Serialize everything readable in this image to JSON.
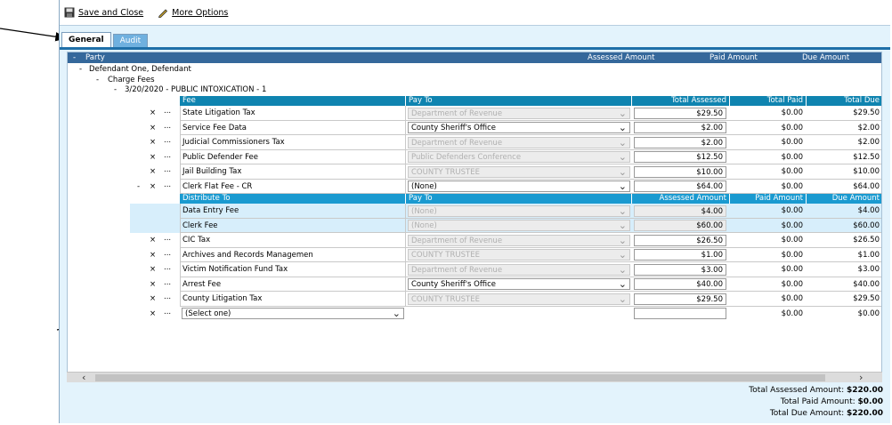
{
  "toolbar": {
    "save_close": "Save and Close",
    "more_options": "More Options"
  },
  "tabs": [
    {
      "label": "General"
    },
    {
      "label": "Audit"
    }
  ],
  "party_header": {
    "party": "Party",
    "assessed": "Assessed Amount",
    "paid": "Paid Amount",
    "due": "Due Amount",
    "collapse": "-"
  },
  "tree": {
    "defendant": "Defendant One, Defendant",
    "charge_fees": "Charge Fees",
    "charge": "3/20/2020 - PUBLIC INTOXICATION - 1",
    "minus": "-"
  },
  "grid_headers": {
    "fee": "Fee",
    "pay_to": "Pay To",
    "total_assessed": "Total Assessed",
    "total_paid": "Total Paid",
    "total_due": "Total Due"
  },
  "sub_headers": {
    "distribute_to": "Distribute To",
    "pay_to": "Pay To",
    "assessed": "Assessed Amount",
    "paid": "Paid Amount",
    "due": "Due Amount"
  },
  "row_controls": {
    "remove": "×",
    "more": "..."
  },
  "fees": [
    {
      "fee": "State Litigation Tax",
      "pay_to": "Department of Revenue",
      "enabled": false,
      "assessed": "$29.50",
      "paid": "$0.00",
      "due": "$29.50"
    },
    {
      "fee": "Service Fee Data",
      "pay_to": "County Sheriff's Office",
      "enabled": true,
      "assessed": "$2.00",
      "paid": "$0.00",
      "due": "$2.00"
    },
    {
      "fee": "Judicial Commissioners Tax",
      "pay_to": "Department of Revenue",
      "enabled": false,
      "assessed": "$2.00",
      "paid": "$0.00",
      "due": "$2.00"
    },
    {
      "fee": "Public Defender Fee",
      "pay_to": "Public Defenders Conference",
      "enabled": false,
      "assessed": "$12.50",
      "paid": "$0.00",
      "due": "$12.50"
    },
    {
      "fee": "Jail Building Tax",
      "pay_to": "COUNTY TRUSTEE",
      "enabled": false,
      "assessed": "$10.00",
      "paid": "$0.00",
      "due": "$10.00"
    },
    {
      "fee": "Clerk Flat Fee - CR",
      "pay_to": "(None)",
      "enabled": true,
      "assessed": "$64.00",
      "paid": "$0.00",
      "due": "$64.00",
      "expanded": true
    }
  ],
  "distributions": [
    {
      "fee": "Data Entry Fee",
      "pay_to": "(None)",
      "assessed": "$4.00",
      "paid": "$0.00",
      "due": "$4.00"
    },
    {
      "fee": "Clerk Fee",
      "pay_to": "(None)",
      "assessed": "$60.00",
      "paid": "$0.00",
      "due": "$60.00"
    }
  ],
  "fees2": [
    {
      "fee": "CIC Tax",
      "pay_to": "Department of Revenue",
      "enabled": false,
      "assessed": "$26.50",
      "paid": "$0.00",
      "due": "$26.50"
    },
    {
      "fee": "Archives and Records Managemen",
      "pay_to": "COUNTY TRUSTEE",
      "enabled": false,
      "assessed": "$1.00",
      "paid": "$0.00",
      "due": "$1.00"
    },
    {
      "fee": "Victim Notification Fund Tax",
      "pay_to": "Department of Revenue",
      "enabled": false,
      "assessed": "$3.00",
      "paid": "$0.00",
      "due": "$3.00"
    },
    {
      "fee": "Arrest Fee",
      "pay_to": "County Sheriff's Office",
      "enabled": true,
      "assessed": "$40.00",
      "paid": "$0.00",
      "due": "$40.00"
    },
    {
      "fee": "County Litigation Tax",
      "pay_to": "COUNTY TRUSTEE",
      "enabled": false,
      "assessed": "$29.50",
      "paid": "$0.00",
      "due": "$29.50"
    }
  ],
  "new_row": {
    "select": "(Select one)",
    "paid": "$0.00",
    "due": "$0.00"
  },
  "totals": {
    "assessed_label": "Total Assessed Amount:",
    "assessed": "$220.00",
    "paid_label": "Total Paid Amount:",
    "paid": "$0.00",
    "due_label": "Total Due Amount:",
    "due": "$220.00"
  },
  "colors": {
    "header": "#35689b",
    "grid_header": "#0f84b0",
    "sub_header": "#1a9ad0",
    "background": "#e3f3fc"
  }
}
